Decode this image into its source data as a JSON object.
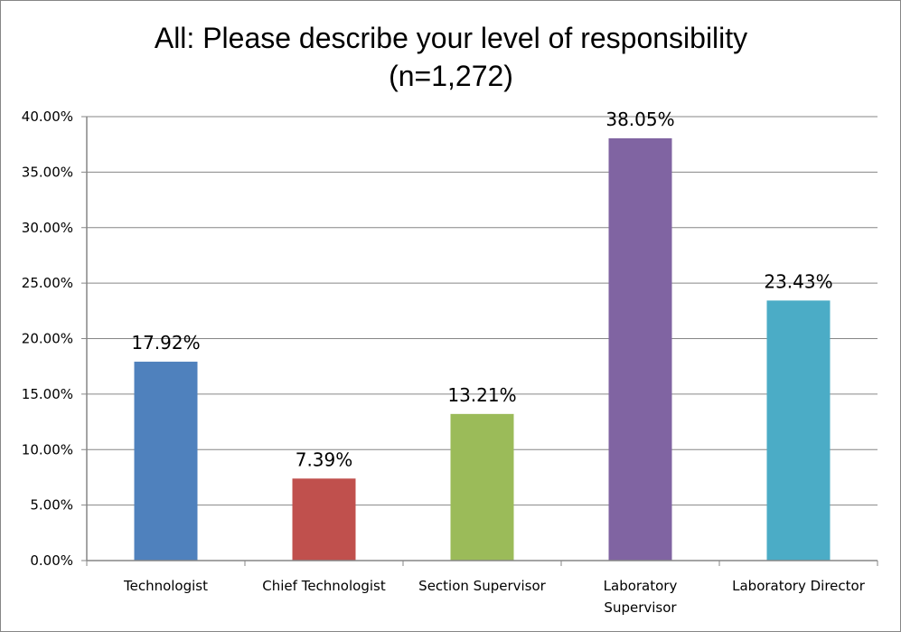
{
  "chart_data": {
    "type": "bar",
    "title_lines": [
      "All: Please describe your level of responsibility",
      "(n=1,272)"
    ],
    "categories": [
      [
        "Technologist"
      ],
      [
        "Chief Technologist"
      ],
      [
        "Section Supervisor"
      ],
      [
        "Laboratory",
        "Supervisor"
      ],
      [
        "Laboratory Director"
      ]
    ],
    "values": [
      17.92,
      7.39,
      13.21,
      38.05,
      23.43
    ],
    "data_labels": [
      "17.92%",
      "7.39%",
      "13.21%",
      "38.05%",
      "23.43%"
    ],
    "colors": [
      "#4F81BD",
      "#C0504D",
      "#9BBB59",
      "#8064A2",
      "#4BACC6"
    ],
    "ylim": [
      0,
      40
    ],
    "yticks": [
      0,
      5,
      10,
      15,
      20,
      25,
      30,
      35,
      40
    ],
    "ytick_labels": [
      "0.00%",
      "5.00%",
      "10.00%",
      "15.00%",
      "20.00%",
      "25.00%",
      "30.00%",
      "35.00%",
      "40.00%"
    ],
    "grid": true,
    "legend": "none"
  }
}
